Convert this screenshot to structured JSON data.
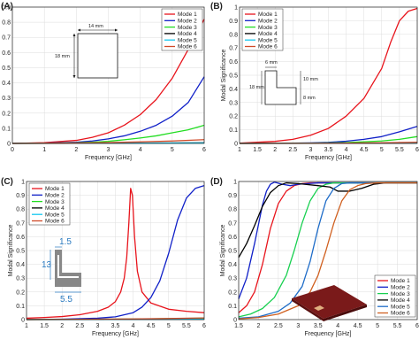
{
  "panel_labels": [
    "(A)",
    "(B)",
    "(C)",
    "(D)"
  ],
  "colors": {
    "mode1": "#e8141c",
    "mode2": "#1020c8",
    "mode3": "#22dd22",
    "mode4": "#000000",
    "mode5": "#14c8f0",
    "mode6": "#d04a28",
    "d_mode3": "#18d050",
    "d_mode5": "#1e6cc8",
    "d_mode6": "#d06020",
    "annotation_blue": "#2a7ac0",
    "grid": "#dcdcdc",
    "patch_fill": "#888888",
    "substrate": "#7a1a1a"
  },
  "annotations": {
    "a_width": "14 mm",
    "a_height": "18 mm",
    "b_top": "6 mm",
    "b_left": "18 mm",
    "b_right_upper": "10 mm",
    "b_right_lower": "8 mm",
    "c_top": "1.5",
    "c_left": "13",
    "c_bottom": "5.5"
  },
  "chart_data": [
    {
      "panel": "(A)",
      "type": "line",
      "xlabel": "Frequency [GHz]",
      "ylabel": "Modal Significance",
      "xlim": [
        0,
        6
      ],
      "ylim": [
        0,
        0.9
      ],
      "xticks": [
        0,
        1,
        2,
        3,
        4,
        5,
        6
      ],
      "yticks": [
        0,
        0.1,
        0.2,
        0.3,
        0.4,
        0.5,
        0.6,
        0.7,
        0.8,
        0.9
      ],
      "legend": "top-right",
      "grid": true,
      "series": [
        {
          "name": "Mode 1",
          "color_key": "mode1",
          "x": [
            0,
            1,
            2,
            2.5,
            3,
            3.5,
            4,
            4.5,
            5,
            5.5,
            6
          ],
          "y": [
            0,
            0.005,
            0.02,
            0.04,
            0.07,
            0.12,
            0.19,
            0.29,
            0.43,
            0.62,
            0.82
          ]
        },
        {
          "name": "Mode 2",
          "color_key": "mode2",
          "x": [
            0,
            1,
            2,
            2.5,
            3,
            3.5,
            4,
            4.5,
            5,
            5.5,
            6
          ],
          "y": [
            0,
            0.002,
            0.008,
            0.016,
            0.03,
            0.05,
            0.08,
            0.12,
            0.18,
            0.27,
            0.44
          ]
        },
        {
          "name": "Mode 3",
          "color_key": "mode3",
          "x": [
            0,
            1,
            2,
            2.5,
            3,
            3.5,
            4,
            4.5,
            5,
            5.5,
            6
          ],
          "y": [
            0,
            0.001,
            0.004,
            0.008,
            0.014,
            0.024,
            0.036,
            0.05,
            0.07,
            0.09,
            0.12
          ]
        },
        {
          "name": "Mode 4",
          "color_key": "mode4",
          "x": [
            0,
            2,
            4,
            6
          ],
          "y": [
            0,
            0.001,
            0.002,
            0.004
          ]
        },
        {
          "name": "Mode 5",
          "color_key": "mode5",
          "x": [
            0,
            2,
            4,
            6
          ],
          "y": [
            0,
            0.001,
            0.002,
            0.003
          ]
        },
        {
          "name": "Mode 6",
          "color_key": "mode6",
          "x": [
            0,
            1,
            2,
            3,
            4,
            5,
            6
          ],
          "y": [
            0,
            0.001,
            0.003,
            0.006,
            0.01,
            0.016,
            0.025
          ]
        }
      ]
    },
    {
      "panel": "(B)",
      "type": "line",
      "xlabel": "Frequency [GHz]",
      "ylabel": "Modal Significance",
      "xlim": [
        1,
        6
      ],
      "ylim": [
        0,
        1
      ],
      "xticks": [
        1,
        1.5,
        2,
        2.5,
        3,
        3.5,
        4,
        4.5,
        5,
        5.5,
        6
      ],
      "yticks": [
        0,
        0.1,
        0.2,
        0.3,
        0.4,
        0.5,
        0.6,
        0.7,
        0.8,
        0.9,
        1
      ],
      "legend": "top-left",
      "grid": true,
      "series": [
        {
          "name": "Mode 1",
          "color_key": "mode1",
          "x": [
            1,
            2,
            2.5,
            3,
            3.5,
            4,
            4.5,
            5,
            5.25,
            5.5,
            5.75,
            6
          ],
          "y": [
            0.002,
            0.015,
            0.03,
            0.06,
            0.11,
            0.2,
            0.33,
            0.55,
            0.74,
            0.9,
            0.97,
            0.99
          ]
        },
        {
          "name": "Mode 2",
          "color_key": "mode2",
          "x": [
            1,
            2,
            3,
            3.5,
            4,
            4.5,
            5,
            5.5,
            6
          ],
          "y": [
            0,
            0.001,
            0.004,
            0.008,
            0.016,
            0.03,
            0.05,
            0.085,
            0.125
          ]
        },
        {
          "name": "Mode 3",
          "color_key": "mode3",
          "x": [
            1,
            2,
            3,
            4,
            5,
            5.5,
            6
          ],
          "y": [
            0,
            0.001,
            0.002,
            0.006,
            0.018,
            0.03,
            0.05
          ]
        },
        {
          "name": "Mode 4",
          "color_key": "mode4",
          "x": [
            1,
            3.5,
            6
          ],
          "y": [
            0,
            0.001,
            0.003
          ]
        },
        {
          "name": "Mode 5",
          "color_key": "mode5",
          "x": [
            1,
            3.5,
            6
          ],
          "y": [
            0,
            0.001,
            0.004
          ]
        },
        {
          "name": "Mode 6",
          "color_key": "mode6",
          "x": [
            1,
            3,
            4,
            5,
            6
          ],
          "y": [
            0,
            0.001,
            0.002,
            0.005,
            0.009
          ]
        }
      ]
    },
    {
      "panel": "(C)",
      "type": "line",
      "xlabel": "Frequency [GHz]",
      "ylabel": "Modal Significance",
      "xlim": [
        1,
        6
      ],
      "ylim": [
        0,
        1
      ],
      "xticks": [
        1,
        1.5,
        2,
        2.5,
        3,
        3.5,
        4,
        4.5,
        5,
        5.5,
        6
      ],
      "yticks": [
        0,
        0.1,
        0.2,
        0.3,
        0.4,
        0.5,
        0.6,
        0.7,
        0.8,
        0.9,
        1
      ],
      "legend": "top-left",
      "grid": true,
      "series": [
        {
          "name": "Mode 1",
          "color_key": "mode1",
          "x": [
            1,
            1.5,
            2,
            2.5,
            3,
            3.3,
            3.5,
            3.65,
            3.75,
            3.82,
            3.88,
            3.93,
            3.98,
            4.04,
            4.12,
            4.25,
            4.5,
            5,
            5.5,
            6
          ],
          "y": [
            0.01,
            0.015,
            0.022,
            0.035,
            0.06,
            0.09,
            0.13,
            0.2,
            0.3,
            0.45,
            0.7,
            0.95,
            0.9,
            0.6,
            0.35,
            0.2,
            0.12,
            0.075,
            0.06,
            0.05
          ]
        },
        {
          "name": "Mode 2",
          "color_key": "mode2",
          "x": [
            1,
            2,
            3,
            3.5,
            4,
            4.25,
            4.5,
            4.75,
            5,
            5.25,
            5.5,
            5.75,
            6
          ],
          "y": [
            0,
            0.003,
            0.01,
            0.02,
            0.05,
            0.09,
            0.16,
            0.28,
            0.48,
            0.72,
            0.88,
            0.95,
            0.97
          ]
        },
        {
          "name": "Mode 3",
          "color_key": "mode3",
          "x": [
            1,
            3,
            4,
            5,
            6
          ],
          "y": [
            0,
            0.002,
            0.004,
            0.007,
            0.01
          ]
        },
        {
          "name": "Mode 4",
          "color_key": "mode4",
          "x": [
            1,
            3.5,
            6
          ],
          "y": [
            0,
            0.001,
            0.002
          ]
        },
        {
          "name": "Mode 5",
          "color_key": "mode5",
          "x": [
            1,
            3.5,
            6
          ],
          "y": [
            0,
            0.001,
            0.003
          ]
        },
        {
          "name": "Mode 6",
          "color_key": "mode6",
          "x": [
            1,
            3,
            4,
            5,
            6
          ],
          "y": [
            0,
            0.003,
            0.005,
            0.008,
            0.012
          ]
        }
      ]
    },
    {
      "panel": "(D)",
      "type": "line",
      "xlabel": "Frequency [GHz]",
      "ylabel": "Modal Significance",
      "xlim": [
        1.5,
        6
      ],
      "ylim": [
        0,
        1
      ],
      "xticks": [
        1.5,
        2,
        2.5,
        3,
        3.5,
        4,
        4.5,
        5,
        5.5,
        6
      ],
      "yticks": [
        0,
        0.1,
        0.2,
        0.3,
        0.4,
        0.5,
        0.6,
        0.7,
        0.8,
        0.9,
        1
      ],
      "legend": "bottom-right",
      "grid": true,
      "series": [
        {
          "name": "Mode 1",
          "color_key": "mode1",
          "x": [
            1.5,
            1.7,
            1.9,
            2.1,
            2.3,
            2.5,
            2.7,
            2.9,
            3.1,
            3.3,
            3.5,
            3.7,
            4,
            4.5,
            5,
            5.5,
            6
          ],
          "y": [
            0.05,
            0.1,
            0.2,
            0.4,
            0.66,
            0.84,
            0.93,
            0.97,
            0.985,
            0.99,
            0.99,
            0.99,
            0.99,
            0.99,
            0.99,
            0.99,
            0.99
          ]
        },
        {
          "name": "Mode 2",
          "color_key": "mode2",
          "x": [
            1.5,
            1.7,
            1.9,
            2.1,
            2.2,
            2.3,
            2.4,
            2.6,
            2.8,
            3,
            3.5,
            4,
            5,
            6
          ],
          "y": [
            0.15,
            0.3,
            0.55,
            0.83,
            0.93,
            0.98,
            0.995,
            0.98,
            0.97,
            0.98,
            0.99,
            0.99,
            0.99,
            0.99
          ]
        },
        {
          "name": "Mode 3",
          "color_key": "mode3",
          "x": [
            1.5,
            1.8,
            2.1,
            2.4,
            2.7,
            2.9,
            3.1,
            3.3,
            3.5,
            3.7,
            3.9,
            4.2,
            4.5,
            5,
            6
          ],
          "y": [
            0.02,
            0.04,
            0.08,
            0.16,
            0.32,
            0.5,
            0.7,
            0.86,
            0.95,
            0.98,
            0.99,
            0.99,
            0.99,
            0.99,
            0.99
          ]
        },
        {
          "name": "Mode 4",
          "color_key": "mode4",
          "x": [
            1.5,
            1.7,
            1.9,
            2.1,
            2.3,
            2.5,
            2.7,
            3,
            3.5,
            3.8,
            4,
            4.3,
            4.6,
            4.9,
            5.2,
            5.5,
            6
          ],
          "y": [
            0.45,
            0.55,
            0.68,
            0.82,
            0.92,
            0.97,
            0.99,
            0.985,
            0.97,
            0.96,
            0.93,
            0.93,
            0.95,
            0.98,
            0.99,
            0.99,
            0.99
          ]
        },
        {
          "name": "Mode 5",
          "color_key": "mode5",
          "x": [
            1.5,
            2,
            2.5,
            2.8,
            3.1,
            3.3,
            3.5,
            3.7,
            3.9,
            4.1,
            4.3,
            4.6,
            5,
            6
          ],
          "y": [
            0.01,
            0.02,
            0.06,
            0.12,
            0.24,
            0.42,
            0.66,
            0.86,
            0.95,
            0.985,
            0.99,
            0.99,
            0.99,
            0.99
          ]
        },
        {
          "name": "Mode 6",
          "color_key": "mode6",
          "x": [
            1.5,
            2,
            2.5,
            3,
            3.3,
            3.5,
            3.7,
            3.9,
            4.1,
            4.3,
            4.5,
            4.7,
            5,
            6
          ],
          "y": [
            0.005,
            0.015,
            0.04,
            0.1,
            0.2,
            0.32,
            0.5,
            0.7,
            0.86,
            0.94,
            0.97,
            0.985,
            0.99,
            0.99
          ]
        }
      ]
    }
  ]
}
